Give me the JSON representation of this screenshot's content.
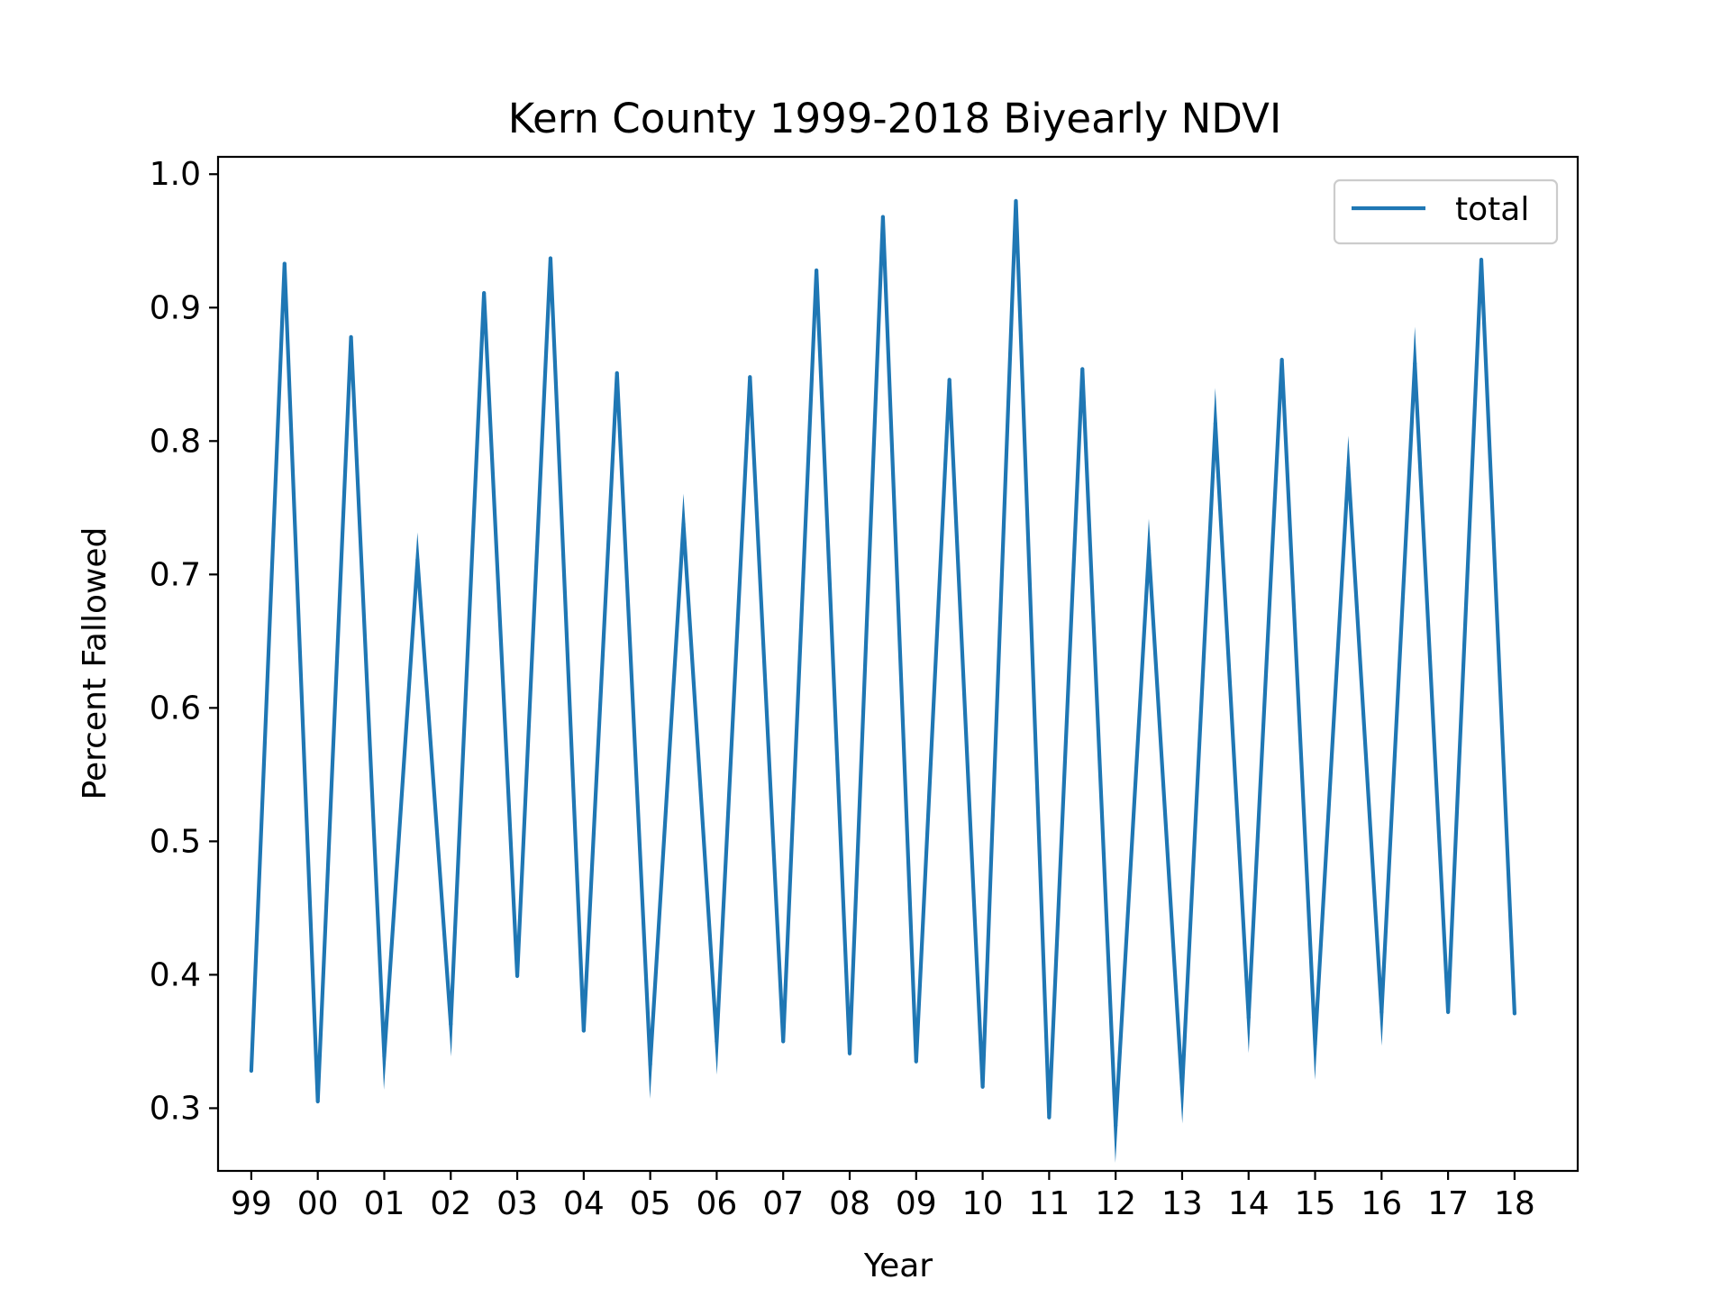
{
  "chart_data": {
    "type": "line",
    "title": "Kern County 1999-2018 Biyearly NDVI",
    "xlabel": "Year",
    "ylabel": "Percent Fallowed",
    "x_tick_labels": [
      "99",
      "00",
      "01",
      "02",
      "03",
      "04",
      "05",
      "06",
      "07",
      "08",
      "09",
      "10",
      "11",
      "12",
      "13",
      "14",
      "15",
      "16",
      "17",
      "18"
    ],
    "y_tick_labels": [
      "0.3",
      "0.4",
      "0.5",
      "0.6",
      "0.7",
      "0.8",
      "0.9",
      "1.0"
    ],
    "ylim": [
      0.253,
      1.013
    ],
    "xlim": [
      1998.5,
      2018.95
    ],
    "legend": {
      "position": "top-right",
      "entries": [
        "total"
      ]
    },
    "grid": false,
    "colors": {
      "series": "#1f77b4"
    },
    "series": [
      {
        "name": "total",
        "x": [
          1999.0,
          1999.5,
          2000.0,
          2000.5,
          2001.0,
          2001.5,
          2002.0,
          2002.5,
          2003.0,
          2003.5,
          2004.0,
          2004.5,
          2005.0,
          2005.5,
          2006.0,
          2006.5,
          2007.0,
          2007.5,
          2008.0,
          2008.5,
          2009.0,
          2009.5,
          2010.0,
          2010.5,
          2011.0,
          2011.5,
          2012.0,
          2012.5,
          2013.0,
          2013.5,
          2014.0,
          2014.5,
          2015.0,
          2015.5,
          2016.0,
          2016.5,
          2017.0,
          2017.5,
          2018.0
        ],
        "values": [
          0.328,
          0.933,
          0.305,
          0.878,
          0.339,
          0.711,
          0.363,
          0.911,
          0.399,
          0.937,
          0.358,
          0.851,
          0.333,
          0.738,
          0.35,
          0.848,
          0.35,
          0.928,
          0.341,
          0.968,
          0.335,
          0.846,
          0.316,
          0.98,
          0.293,
          0.854,
          0.287,
          0.718,
          0.314,
          0.813,
          0.368,
          0.861,
          0.348,
          0.78,
          0.372,
          0.858,
          0.372,
          0.936,
          0.371
        ]
      }
    ]
  }
}
